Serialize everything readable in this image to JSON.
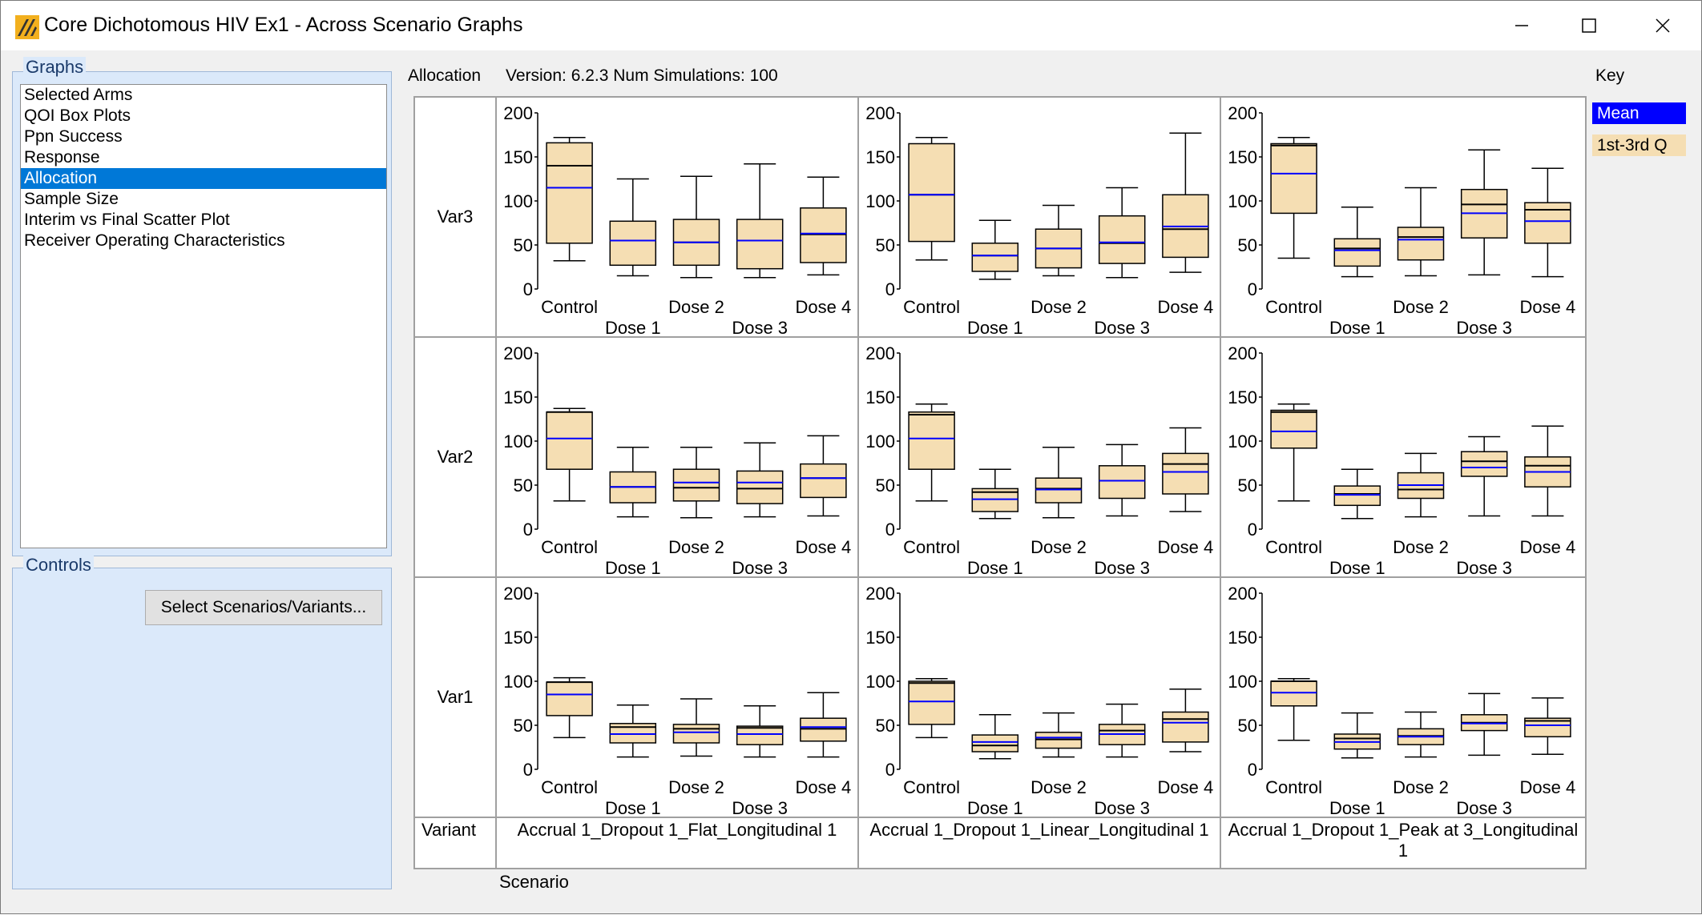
{
  "window": {
    "title": "Core Dichotomous HIV Ex1 - Across Scenario Graphs",
    "controls": [
      "minimize",
      "maximize",
      "close"
    ]
  },
  "graphs_panel": {
    "label": "Graphs",
    "items": [
      "Selected Arms",
      "QOI Box Plots",
      "Ppn Success",
      "Response",
      "Allocation",
      "Sample Size",
      "Interim vs Final Scatter Plot",
      "Receiver Operating Characteristics"
    ],
    "selected_index": 4
  },
  "controls_panel": {
    "label": "Controls",
    "button_label": "Select Scenarios/Variants..."
  },
  "header": {
    "graph_name": "Allocation",
    "version_text": "Version: 6.2.3  Num Simulations: 100"
  },
  "key": {
    "label": "Key",
    "mean_label": "Mean",
    "quartile_label": "1st-3rd Q",
    "mean_color": "#0000ff",
    "box_color": "#f5deb3"
  },
  "grid": {
    "variant_header": "Variant",
    "scenario_header": "Scenario",
    "scenarios": [
      "Accrual 1_Dropout 1_Flat_Longitudinal 1",
      "Accrual 1_Dropout 1_Linear_Longitudinal 1",
      "Accrual 1_Dropout 1_Peak at 3_Longitudinal 1"
    ],
    "variants": [
      "Var3",
      "Var2",
      "Var1"
    ]
  },
  "chart_data": {
    "type": "box",
    "categories": [
      "Control",
      "Dose 1",
      "Dose 2",
      "Dose 3",
      "Dose 4"
    ],
    "ylim": [
      0,
      200
    ],
    "yticks": [
      0,
      50,
      100,
      150,
      200
    ],
    "panels": [
      {
        "variant": "Var3",
        "scenario": "Accrual 1_Dropout 1_Flat_Longitudinal 1",
        "boxes": [
          {
            "min": 32,
            "q1": 52,
            "median": 140,
            "q3": 166,
            "max": 172,
            "mean": 115
          },
          {
            "min": 15,
            "q1": 27,
            "median": 55,
            "q3": 77,
            "max": 125,
            "mean": 55
          },
          {
            "min": 13,
            "q1": 27,
            "median": 53,
            "q3": 79,
            "max": 128,
            "mean": 53
          },
          {
            "min": 13,
            "q1": 23,
            "median": 55,
            "q3": 79,
            "max": 142,
            "mean": 55
          },
          {
            "min": 16,
            "q1": 30,
            "median": 62,
            "q3": 92,
            "max": 127,
            "mean": 63
          }
        ]
      },
      {
        "variant": "Var3",
        "scenario": "Accrual 1_Dropout 1_Linear_Longitudinal 1",
        "boxes": [
          {
            "min": 33,
            "q1": 54,
            "median": 107,
            "q3": 165,
            "max": 172,
            "mean": 107
          },
          {
            "min": 11,
            "q1": 20,
            "median": 38,
            "q3": 52,
            "max": 78,
            "mean": 38
          },
          {
            "min": 15,
            "q1": 24,
            "median": 46,
            "q3": 68,
            "max": 95,
            "mean": 46
          },
          {
            "min": 13,
            "q1": 29,
            "median": 52,
            "q3": 83,
            "max": 115,
            "mean": 53
          },
          {
            "min": 19,
            "q1": 36,
            "median": 68,
            "q3": 107,
            "max": 177,
            "mean": 71
          }
        ]
      },
      {
        "variant": "Var3",
        "scenario": "Accrual 1_Dropout 1_Peak at 3_Longitudinal 1",
        "boxes": [
          {
            "min": 35,
            "q1": 86,
            "median": 163,
            "q3": 165,
            "max": 172,
            "mean": 131
          },
          {
            "min": 14,
            "q1": 26,
            "median": 46,
            "q3": 57,
            "max": 93,
            "mean": 44
          },
          {
            "min": 15,
            "q1": 33,
            "median": 59,
            "q3": 70,
            "max": 115,
            "mean": 56
          },
          {
            "min": 16,
            "q1": 58,
            "median": 96,
            "q3": 113,
            "max": 158,
            "mean": 86
          },
          {
            "min": 14,
            "q1": 52,
            "median": 90,
            "q3": 98,
            "max": 137,
            "mean": 77
          }
        ]
      },
      {
        "variant": "Var2",
        "scenario": "Accrual 1_Dropout 1_Flat_Longitudinal 1",
        "boxes": [
          {
            "min": 32,
            "q1": 68,
            "median": 133,
            "q3": 133,
            "max": 137,
            "mean": 103
          },
          {
            "min": 14,
            "q1": 30,
            "median": 48,
            "q3": 65,
            "max": 93,
            "mean": 48
          },
          {
            "min": 13,
            "q1": 32,
            "median": 47,
            "q3": 68,
            "max": 93,
            "mean": 53
          },
          {
            "min": 14,
            "q1": 29,
            "median": 46,
            "q3": 66,
            "max": 98,
            "mean": 53
          },
          {
            "min": 15,
            "q1": 36,
            "median": 58,
            "q3": 74,
            "max": 106,
            "mean": 58
          }
        ]
      },
      {
        "variant": "Var2",
        "scenario": "Accrual 1_Dropout 1_Linear_Longitudinal 1",
        "boxes": [
          {
            "min": 32,
            "q1": 68,
            "median": 130,
            "q3": 133,
            "max": 142,
            "mean": 103
          },
          {
            "min": 12,
            "q1": 20,
            "median": 42,
            "q3": 46,
            "max": 68,
            "mean": 34
          },
          {
            "min": 13,
            "q1": 30,
            "median": 46,
            "q3": 58,
            "max": 93,
            "mean": 45
          },
          {
            "min": 15,
            "q1": 35,
            "median": 55,
            "q3": 72,
            "max": 96,
            "mean": 55
          },
          {
            "min": 20,
            "q1": 40,
            "median": 74,
            "q3": 86,
            "max": 115,
            "mean": 65
          }
        ]
      },
      {
        "variant": "Var2",
        "scenario": "Accrual 1_Dropout 1_Peak at 3_Longitudinal 1",
        "boxes": [
          {
            "min": 32,
            "q1": 92,
            "median": 133,
            "q3": 135,
            "max": 142,
            "mean": 111
          },
          {
            "min": 12,
            "q1": 27,
            "median": 40,
            "q3": 49,
            "max": 68,
            "mean": 39
          },
          {
            "min": 14,
            "q1": 35,
            "median": 45,
            "q3": 64,
            "max": 86,
            "mean": 50
          },
          {
            "min": 15,
            "q1": 60,
            "median": 77,
            "q3": 88,
            "max": 105,
            "mean": 70
          },
          {
            "min": 15,
            "q1": 48,
            "median": 72,
            "q3": 82,
            "max": 117,
            "mean": 65
          }
        ]
      },
      {
        "variant": "Var1",
        "scenario": "Accrual 1_Dropout 1_Flat_Longitudinal 1",
        "boxes": [
          {
            "min": 36,
            "q1": 61,
            "median": 99,
            "q3": 99,
            "max": 104,
            "mean": 85
          },
          {
            "min": 14,
            "q1": 30,
            "median": 48,
            "q3": 52,
            "max": 73,
            "mean": 40
          },
          {
            "min": 15,
            "q1": 30,
            "median": 46,
            "q3": 51,
            "max": 80,
            "mean": 42
          },
          {
            "min": 14,
            "q1": 28,
            "median": 47,
            "q3": 49,
            "max": 72,
            "mean": 40
          },
          {
            "min": 14,
            "q1": 32,
            "median": 46,
            "q3": 58,
            "max": 87,
            "mean": 48
          }
        ]
      },
      {
        "variant": "Var1",
        "scenario": "Accrual 1_Dropout 1_Linear_Longitudinal 1",
        "boxes": [
          {
            "min": 36,
            "q1": 51,
            "median": 98,
            "q3": 100,
            "max": 103,
            "mean": 77
          },
          {
            "min": 12,
            "q1": 20,
            "median": 27,
            "q3": 39,
            "max": 62,
            "mean": 31
          },
          {
            "min": 14,
            "q1": 24,
            "median": 34,
            "q3": 42,
            "max": 64,
            "mean": 36
          },
          {
            "min": 14,
            "q1": 28,
            "median": 44,
            "q3": 51,
            "max": 74,
            "mean": 40
          },
          {
            "min": 20,
            "q1": 31,
            "median": 57,
            "q3": 65,
            "max": 91,
            "mean": 53
          }
        ]
      },
      {
        "variant": "Var1",
        "scenario": "Accrual 1_Dropout 1_Peak at 3_Longitudinal 1",
        "boxes": [
          {
            "min": 33,
            "q1": 72,
            "median": 100,
            "q3": 100,
            "max": 103,
            "mean": 87
          },
          {
            "min": 13,
            "q1": 23,
            "median": 35,
            "q3": 40,
            "max": 64,
            "mean": 31
          },
          {
            "min": 14,
            "q1": 28,
            "median": 38,
            "q3": 46,
            "max": 65,
            "mean": 37
          },
          {
            "min": 16,
            "q1": 44,
            "median": 53,
            "q3": 62,
            "max": 86,
            "mean": 52
          },
          {
            "min": 17,
            "q1": 37,
            "median": 55,
            "q3": 58,
            "max": 81,
            "mean": 50
          }
        ]
      }
    ]
  }
}
